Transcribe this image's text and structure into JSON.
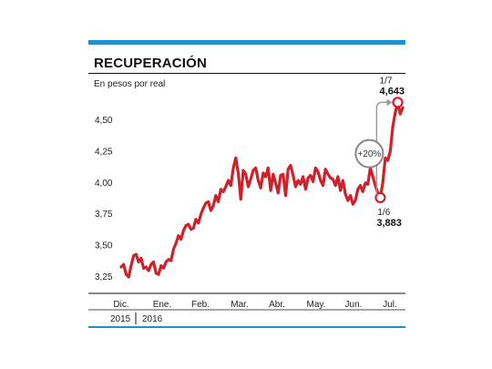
{
  "chart_data": {
    "type": "line",
    "title": "RECUPERACIÓN",
    "subtitle": "En pesos por real",
    "ylim": [
      3.15,
      4.68
    ],
    "y_ticks": [
      "4,50",
      "4,25",
      "4,00",
      "3,75",
      "3,50",
      "3,25"
    ],
    "y_tick_values": [
      4.5,
      4.25,
      4.0,
      3.75,
      3.5,
      3.25
    ],
    "x_month_labels": [
      "Dic.",
      "Ene.",
      "Feb.",
      "Mar.",
      "Abr.",
      "May.",
      "Jun.",
      "Jul."
    ],
    "year_labels": [
      "2015",
      "2016"
    ],
    "grid": false,
    "line_color": "#d0202a",
    "accent_color": "#1e90d2",
    "series": [
      {
        "values": [
          3.33,
          3.35,
          3.27,
          3.25,
          3.34,
          3.42,
          3.43,
          3.37,
          3.4,
          3.32,
          3.33,
          3.3,
          3.35,
          3.37,
          3.28,
          3.27,
          3.34,
          3.32,
          3.37,
          3.39,
          3.38,
          3.47,
          3.52,
          3.58,
          3.55,
          3.62,
          3.66,
          3.67,
          3.63,
          3.64,
          3.71,
          3.68,
          3.75,
          3.8,
          3.84,
          3.85,
          3.78,
          3.82,
          3.9,
          3.85,
          3.95,
          3.93,
          3.97,
          4.02,
          3.98,
          4.12,
          4.2,
          4.08,
          3.87,
          4.1,
          4.07,
          3.97,
          4.03,
          4.1,
          4.12,
          4.02,
          3.96,
          4.08,
          4.05,
          4.12,
          3.94,
          4.07,
          4.0,
          3.92,
          4.06,
          4.07,
          3.9,
          4.11,
          4.14,
          4.06,
          3.97,
          4.02,
          3.99,
          4.05,
          3.95,
          4.04,
          4.06,
          4.01,
          4.12,
          4.09,
          4.02,
          3.98,
          4.11,
          4.07,
          4.04,
          4.03,
          3.98,
          4.05,
          3.94,
          4.02,
          3.91,
          3.86,
          3.9,
          3.83,
          3.86,
          3.95,
          3.98,
          3.93,
          4.0,
          3.99,
          4.12,
          4.05,
          3.98,
          3.92,
          3.883,
          4.0,
          4.2,
          4.18,
          4.25,
          4.45,
          4.56,
          4.643,
          4.55,
          4.6
        ]
      }
    ],
    "annotations": {
      "low": {
        "date": "1/6",
        "value": "3,883"
      },
      "high": {
        "date": "1/7",
        "value": "4,643"
      },
      "change": "+20%"
    }
  }
}
